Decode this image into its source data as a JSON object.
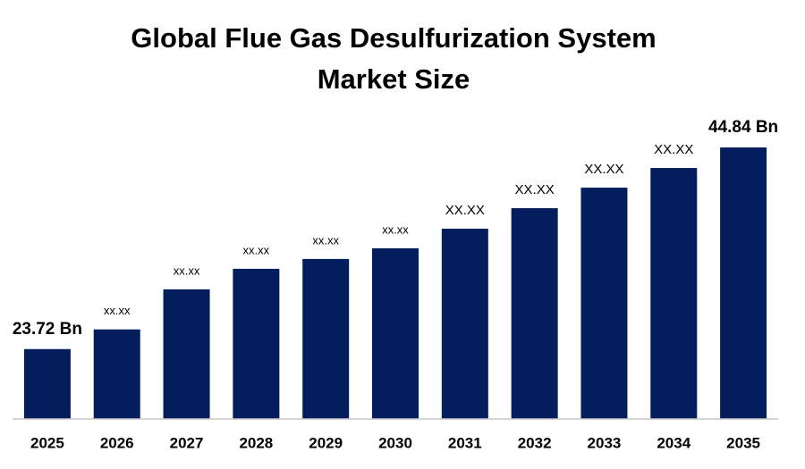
{
  "chart_data": {
    "type": "bar",
    "title": "Global Flue Gas Desulfurization System Market Size",
    "categories": [
      "2025",
      "2026",
      "2027",
      "2028",
      "2029",
      "2030",
      "2031",
      "2032",
      "2033",
      "2034",
      "2035"
    ],
    "values": [
      23.72,
      25.78,
      29.98,
      32.13,
      33.16,
      34.28,
      36.33,
      38.48,
      40.63,
      42.69,
      44.84
    ],
    "value_labels": [
      "23.72 Bn",
      "xx.xx",
      "xx.xx",
      "xx.xx",
      "xx.xx",
      "xx.xx",
      "XX.XX",
      "XX.XX",
      "XX.XX",
      "XX.XX",
      "44.84 Bn"
    ],
    "color": "#031d5d",
    "ylim": [
      16.4,
      47
    ]
  }
}
